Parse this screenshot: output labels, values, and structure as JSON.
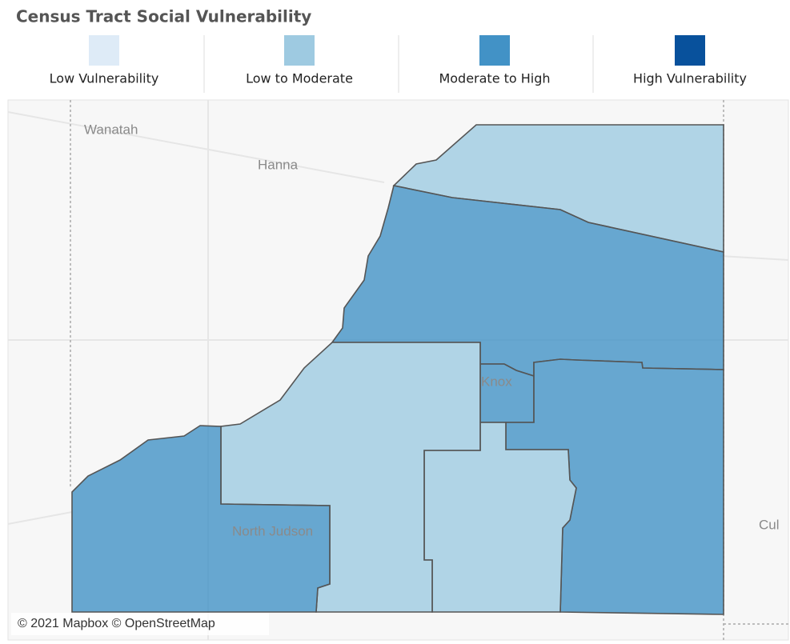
{
  "title": "Census Tract Social Vulnerability",
  "legend": [
    {
      "label": "Low Vulnerability",
      "color": "#deebf7"
    },
    {
      "label": "Low to Moderate",
      "color": "#9ecae1"
    },
    {
      "label": "Moderate to High",
      "color": "#4292c6"
    },
    {
      "label": "High Vulnerability",
      "color": "#08519c"
    }
  ],
  "places": [
    "Wanatah",
    "Hanna",
    "Knox",
    "North Judson",
    "Cul"
  ],
  "attribution": "© 2021 Mapbox © OpenStreetMap"
}
